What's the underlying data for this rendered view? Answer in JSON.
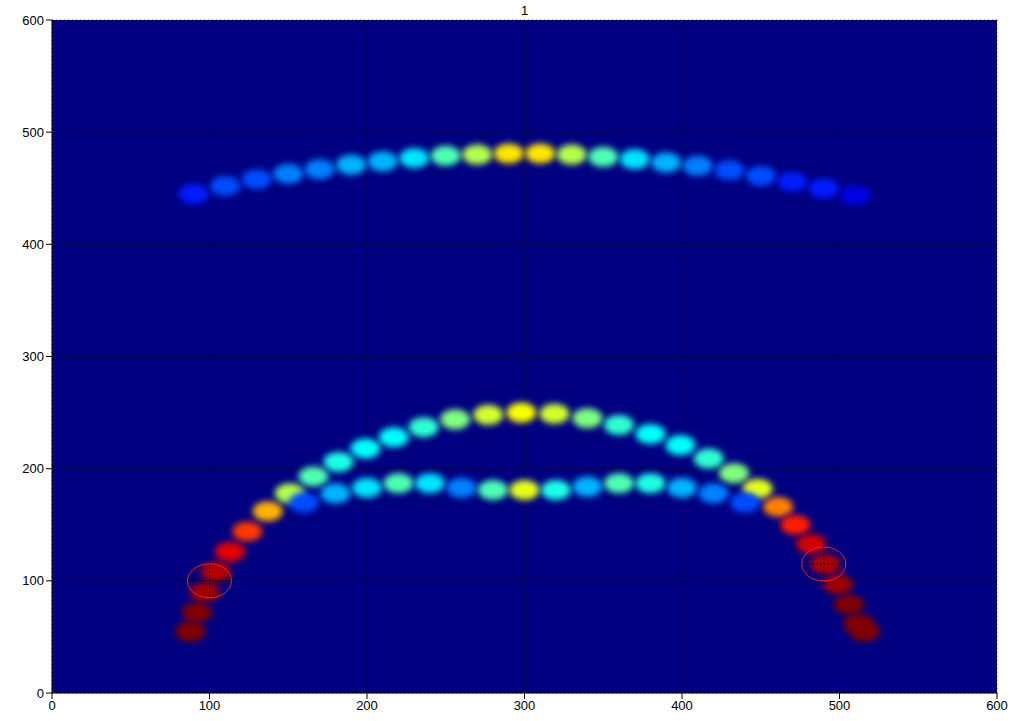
{
  "chart_data": {
    "type": "scatter",
    "title": "1",
    "xlim": [
      0,
      600
    ],
    "ylim": [
      0,
      600
    ],
    "xticks": [
      0,
      100,
      200,
      300,
      400,
      500,
      600
    ],
    "yticks": [
      0,
      100,
      200,
      300,
      400,
      500,
      600
    ],
    "grid": true,
    "color_range": [
      0,
      1
    ],
    "arcs": [
      {
        "x": [
          88,
          92,
          97,
          104,
          113,
          124,
          137,
          151,
          166,
          182,
          199,
          217,
          236,
          256,
          277,
          298,
          319,
          340,
          360,
          380,
          399,
          417,
          433,
          448,
          461,
          472,
          482,
          491,
          499,
          506,
          512,
          516
        ],
        "y": [
          55,
          72,
          90,
          108,
          126,
          144,
          162,
          178,
          193,
          206,
          218,
          228,
          237,
          244,
          248,
          250,
          249,
          245,
          239,
          231,
          221,
          209,
          196,
          182,
          166,
          150,
          133,
          115,
          97,
          79,
          62,
          55
        ],
        "intensity": [
          1.0,
          1.0,
          0.97,
          0.95,
          0.9,
          0.82,
          0.7,
          0.55,
          0.45,
          0.4,
          0.38,
          0.38,
          0.42,
          0.5,
          0.58,
          0.62,
          0.58,
          0.5,
          0.42,
          0.38,
          0.38,
          0.42,
          0.5,
          0.6,
          0.75,
          0.85,
          0.92,
          0.95,
          0.97,
          1.0,
          1.0,
          1.0
        ]
      },
      {
        "x": [
          160,
          180,
          200,
          220,
          240,
          260,
          280,
          300,
          320,
          340,
          360,
          380,
          400,
          420,
          440
        ],
        "y": [
          170,
          178,
          183,
          187,
          187,
          183,
          181,
          181,
          181,
          184,
          187,
          187,
          183,
          178,
          170
        ],
        "intensity": [
          0.2,
          0.3,
          0.35,
          0.45,
          0.35,
          0.25,
          0.45,
          0.6,
          0.4,
          0.3,
          0.45,
          0.4,
          0.3,
          0.25,
          0.2
        ]
      },
      {
        "x": [
          90,
          110,
          130,
          150,
          170,
          190,
          210,
          230,
          250,
          270,
          290,
          310,
          330,
          350,
          370,
          390,
          410,
          430,
          450,
          470,
          490,
          510
        ],
        "y": [
          445,
          452,
          458,
          463,
          467,
          471,
          474,
          477,
          479,
          480,
          481,
          481,
          480,
          478,
          476,
          473,
          470,
          466,
          461,
          456,
          450,
          444
        ],
        "intensity": [
          0.15,
          0.2,
          0.2,
          0.25,
          0.25,
          0.3,
          0.3,
          0.35,
          0.45,
          0.55,
          0.65,
          0.65,
          0.55,
          0.45,
          0.35,
          0.3,
          0.25,
          0.2,
          0.2,
          0.15,
          0.15,
          0.1
        ]
      }
    ],
    "markers": [
      {
        "x": 100,
        "y": 100
      },
      {
        "x": 490,
        "y": 115
      }
    ]
  }
}
